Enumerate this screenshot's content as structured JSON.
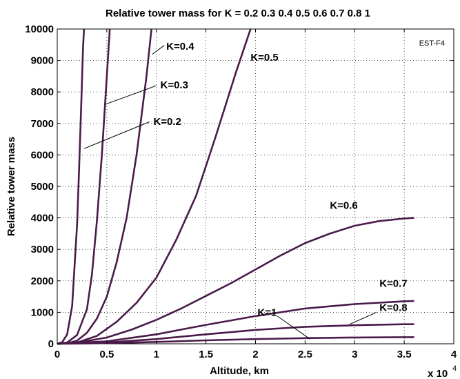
{
  "chart_data": {
    "type": "line",
    "title": "Relative tower mass for K = 0.2  0.3  0.4  0.5  0.6  0.7  0.8  1",
    "xlabel": "Altitude, km",
    "ylabel": "Relative tower mass",
    "x_multiplier": "x 10",
    "x_multiplier_exp": "4",
    "corner_tag": "EST-F4",
    "xlim": [
      0,
      4
    ],
    "ylim": [
      0,
      10000
    ],
    "x_ticks": [
      "0",
      "0.5",
      "1",
      "1.5",
      "2",
      "2.5",
      "3",
      "3.5",
      "4"
    ],
    "y_ticks": [
      "0",
      "1000",
      "2000",
      "3000",
      "4000",
      "5000",
      "6000",
      "7000",
      "8000",
      "9000",
      "10000"
    ],
    "grid": true,
    "line_color": "#4a1a4a",
    "series": [
      {
        "name": "K=0.2",
        "x": [
          0,
          0.05,
          0.1,
          0.15,
          0.2,
          0.22,
          0.24,
          0.26,
          0.27
        ],
        "y": [
          0,
          50,
          300,
          1200,
          3800,
          5500,
          7400,
          9400,
          10000
        ]
      },
      {
        "name": "K=0.3",
        "x": [
          0,
          0.1,
          0.2,
          0.3,
          0.35,
          0.4,
          0.45,
          0.5,
          0.53
        ],
        "y": [
          0,
          40,
          280,
          1100,
          2200,
          3900,
          6000,
          8500,
          10000
        ]
      },
      {
        "name": "K=0.4",
        "x": [
          0,
          0.1,
          0.2,
          0.3,
          0.4,
          0.5,
          0.6,
          0.7,
          0.8,
          0.9,
          0.95
        ],
        "y": [
          0,
          10,
          100,
          350,
          800,
          1500,
          2600,
          4000,
          6000,
          8500,
          10000
        ]
      },
      {
        "name": "K=0.5",
        "x": [
          0,
          0.2,
          0.4,
          0.6,
          0.8,
          1.0,
          1.2,
          1.4,
          1.6,
          1.8,
          1.95
        ],
        "y": [
          0,
          40,
          250,
          700,
          1300,
          2100,
          3300,
          4700,
          6600,
          8600,
          10000
        ]
      },
      {
        "name": "K=0.6",
        "x": [
          0,
          0.25,
          0.5,
          0.75,
          1.0,
          1.25,
          1.5,
          1.75,
          2.0,
          2.25,
          2.5,
          2.75,
          3.0,
          3.25,
          3.5,
          3.6
        ],
        "y": [
          0,
          60,
          200,
          450,
          760,
          1120,
          1520,
          1920,
          2360,
          2800,
          3200,
          3500,
          3750,
          3900,
          3980,
          4000
        ]
      },
      {
        "name": "K=0.7",
        "x": [
          0,
          0.5,
          1.0,
          1.5,
          2.0,
          2.5,
          3.0,
          3.5,
          3.6
        ],
        "y": [
          0,
          80,
          300,
          600,
          880,
          1120,
          1260,
          1350,
          1360
        ]
      },
      {
        "name": "K=0.8",
        "x": [
          0,
          0.5,
          1.0,
          1.5,
          2.0,
          2.5,
          3.0,
          3.5,
          3.6
        ],
        "y": [
          0,
          40,
          150,
          300,
          440,
          540,
          590,
          620,
          620
        ]
      },
      {
        "name": "K=1",
        "x": [
          0,
          0.5,
          1.0,
          1.5,
          2.0,
          2.5,
          3.0,
          3.5,
          3.6
        ],
        "y": [
          0,
          20,
          60,
          110,
          150,
          180,
          200,
          210,
          210
        ]
      }
    ],
    "annotations": [
      {
        "label": "K=0.4",
        "x": 1.1,
        "y": 9450
      },
      {
        "label": "K=0.5",
        "x": 1.95,
        "y": 9100
      },
      {
        "label": "K=0.3",
        "x": 1.04,
        "y": 8220
      },
      {
        "label": "K=0.2",
        "x": 0.97,
        "y": 7060
      },
      {
        "label": "K=0.6",
        "x": 2.75,
        "y": 4400
      },
      {
        "label": "K=0.7",
        "x": 3.25,
        "y": 1920
      },
      {
        "label": "K=1",
        "x": 2.02,
        "y": 1000
      },
      {
        "label": "K=0.8",
        "x": 3.25,
        "y": 1150
      }
    ]
  }
}
